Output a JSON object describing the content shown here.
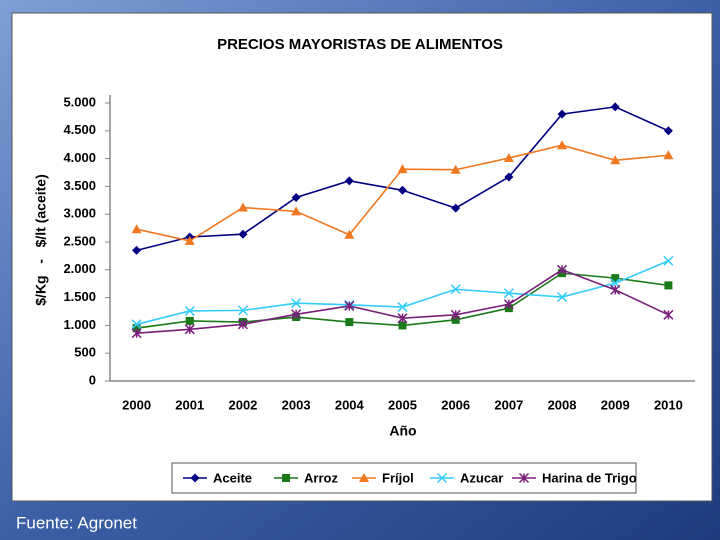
{
  "chart_data": {
    "type": "line",
    "title": "PRECIOS MAYORISTAS DE ALIMENTOS",
    "x_label": "Año",
    "y_label": "$/Kg   -   $/lt (aceite)",
    "categories": [
      "2000",
      "2001",
      "2002",
      "2003",
      "2004",
      "2005",
      "2006",
      "2007",
      "2008",
      "2009",
      "2010"
    ],
    "series": [
      {
        "name": "Aceite",
        "color": "#000080",
        "marker": "diamond",
        "values": [
          2350,
          2590,
          2640,
          3300,
          3600,
          3430,
          3110,
          3670,
          4800,
          4930,
          4500
        ]
      },
      {
        "name": "Arroz",
        "color": "#1a7a1a",
        "marker": "square",
        "values": [
          950,
          1080,
          1060,
          1150,
          1060,
          1000,
          1100,
          1310,
          1940,
          1850,
          1720
        ]
      },
      {
        "name": "Fríjol",
        "color": "#f07820",
        "marker": "triangle",
        "values": [
          2730,
          2520,
          3120,
          3050,
          2630,
          3810,
          3800,
          4010,
          4240,
          3970,
          4060
        ]
      },
      {
        "name": "Azucar",
        "color": "#33ccff",
        "marker": "x",
        "values": [
          1020,
          1260,
          1270,
          1400,
          1370,
          1330,
          1650,
          1580,
          1510,
          1760,
          2160
        ]
      },
      {
        "name": "Harina de Trigo",
        "color": "#7a1f7a",
        "marker": "star",
        "values": [
          860,
          930,
          1020,
          1200,
          1350,
          1130,
          1190,
          1380,
          2000,
          1640,
          1190
        ]
      }
    ],
    "ylim": [
      0,
      5000
    ],
    "yticks": [
      0,
      500,
      {
        "value": 1000,
        "label": "1.000"
      },
      {
        "value": 1500,
        "label": "1.500"
      },
      {
        "value": 2000,
        "label": "2.000"
      },
      {
        "value": 2500,
        "label": "2.500"
      },
      {
        "value": 3000,
        "label": "3.000"
      },
      {
        "value": 3500,
        "label": "3.500"
      },
      {
        "value": 4000,
        "label": "4.000"
      },
      {
        "value": 4500,
        "label": "4.500"
      },
      {
        "value": 5000,
        "label": "5.000"
      }
    ],
    "grid": false,
    "legend": "bottom"
  },
  "source": "Fuente: Agronet"
}
